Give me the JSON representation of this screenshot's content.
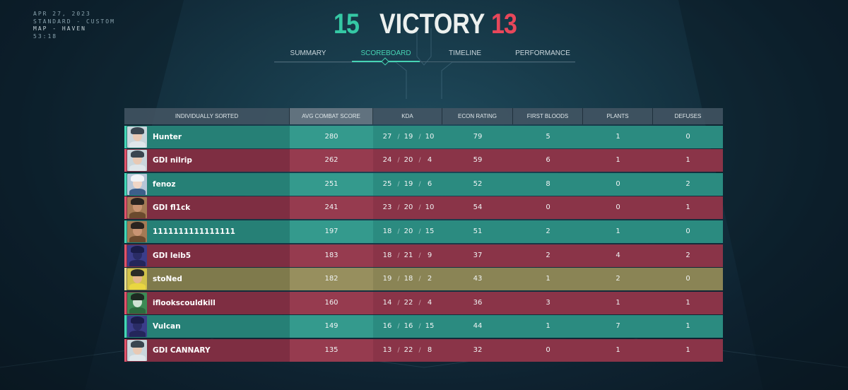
{
  "match": {
    "date": "APR 27, 2023",
    "mode": "STANDARD - CUSTOM",
    "map": "MAP - HAVEN",
    "duration": "53:18"
  },
  "result": {
    "team_score": "15",
    "label": "VICTORY",
    "enemy_score": "13"
  },
  "tabs": [
    {
      "label": "SUMMARY",
      "active": false
    },
    {
      "label": "SCOREBOARD",
      "active": true
    },
    {
      "label": "TIMELINE",
      "active": false
    },
    {
      "label": "PERFORMANCE",
      "active": false
    }
  ],
  "columns": [
    "INDIVIDUALLY SORTED",
    "AVG COMBAT SCORE",
    "KDA",
    "ECON RATING",
    "FIRST BLOODS",
    "PLANTS",
    "DEFUSES"
  ],
  "colors": {
    "team_green": "#2b8b80",
    "team_red": "#8a3448",
    "self_yellow": "#8a8455",
    "accent": "#47d4b4",
    "enemy_accent": "#e8475a"
  },
  "players": [
    {
      "name": "Hunter",
      "team": "green",
      "agent_icon": "sage-icon",
      "acs": "280",
      "k": "27",
      "d": "19",
      "a": "10",
      "econ": "79",
      "fb": "5",
      "plants": "1",
      "defuses": "0"
    },
    {
      "name": "GDI nilrip",
      "team": "red",
      "agent_icon": "sage-icon",
      "acs": "262",
      "k": "24",
      "d": "20",
      "a": "4",
      "econ": "59",
      "fb": "6",
      "plants": "1",
      "defuses": "1"
    },
    {
      "name": "fenoz",
      "team": "green",
      "agent_icon": "jett-icon",
      "acs": "251",
      "k": "25",
      "d": "19",
      "a": "6",
      "econ": "52",
      "fb": "8",
      "plants": "0",
      "defuses": "2"
    },
    {
      "name": "GDI fl1ck",
      "team": "red",
      "agent_icon": "chamber-icon",
      "acs": "241",
      "k": "23",
      "d": "20",
      "a": "10",
      "econ": "54",
      "fb": "0",
      "plants": "0",
      "defuses": "1"
    },
    {
      "name": "1111111111111111",
      "team": "green",
      "agent_icon": "chamber-icon",
      "acs": "197",
      "k": "18",
      "d": "20",
      "a": "15",
      "econ": "51",
      "fb": "2",
      "plants": "1",
      "defuses": "0"
    },
    {
      "name": "GDI leib5",
      "team": "red",
      "agent_icon": "omen-icon",
      "acs": "183",
      "k": "18",
      "d": "21",
      "a": "9",
      "econ": "37",
      "fb": "2",
      "plants": "4",
      "defuses": "2"
    },
    {
      "name": "stoNed",
      "team": "yellow",
      "agent_icon": "killjoy-icon",
      "acs": "182",
      "k": "19",
      "d": "18",
      "a": "2",
      "econ": "43",
      "fb": "1",
      "plants": "2",
      "defuses": "0"
    },
    {
      "name": "iflookscouldkill",
      "team": "red",
      "agent_icon": "viper-icon",
      "acs": "160",
      "k": "14",
      "d": "22",
      "a": "4",
      "econ": "36",
      "fb": "3",
      "plants": "1",
      "defuses": "1"
    },
    {
      "name": "Vulcan",
      "team": "green",
      "agent_icon": "omen-icon",
      "acs": "149",
      "k": "16",
      "d": "16",
      "a": "15",
      "econ": "44",
      "fb": "1",
      "plants": "7",
      "defuses": "1"
    },
    {
      "name": "GDI CANNARY",
      "team": "red",
      "agent_icon": "sage-icon",
      "acs": "135",
      "k": "13",
      "d": "22",
      "a": "8",
      "econ": "32",
      "fb": "0",
      "plants": "1",
      "defuses": "1"
    }
  ]
}
